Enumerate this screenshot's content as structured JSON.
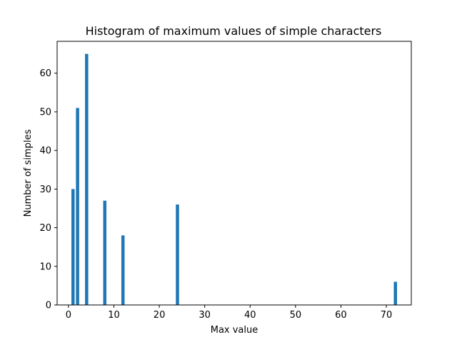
{
  "chart_data": {
    "type": "bar",
    "title": "Histogram of maximum values of simple characters",
    "xlabel": "Max value",
    "ylabel": "Number of simples",
    "xlim": [
      -2.5,
      75.5
    ],
    "ylim": [
      0,
      68.25
    ],
    "xticks": [
      0,
      10,
      20,
      30,
      40,
      50,
      60,
      70
    ],
    "yticks": [
      0,
      10,
      20,
      30,
      40,
      50,
      60
    ],
    "bin_width": 0.71,
    "bins": [
      {
        "x": 1.0,
        "value": 30
      },
      {
        "x": 2.0,
        "value": 51
      },
      {
        "x": 4.0,
        "value": 65
      },
      {
        "x": 8.0,
        "value": 27
      },
      {
        "x": 12.0,
        "value": 18
      },
      {
        "x": 24.0,
        "value": 26
      },
      {
        "x": 72.0,
        "value": 6
      }
    ],
    "bar_color": "#1f77b4",
    "grid": false
  }
}
